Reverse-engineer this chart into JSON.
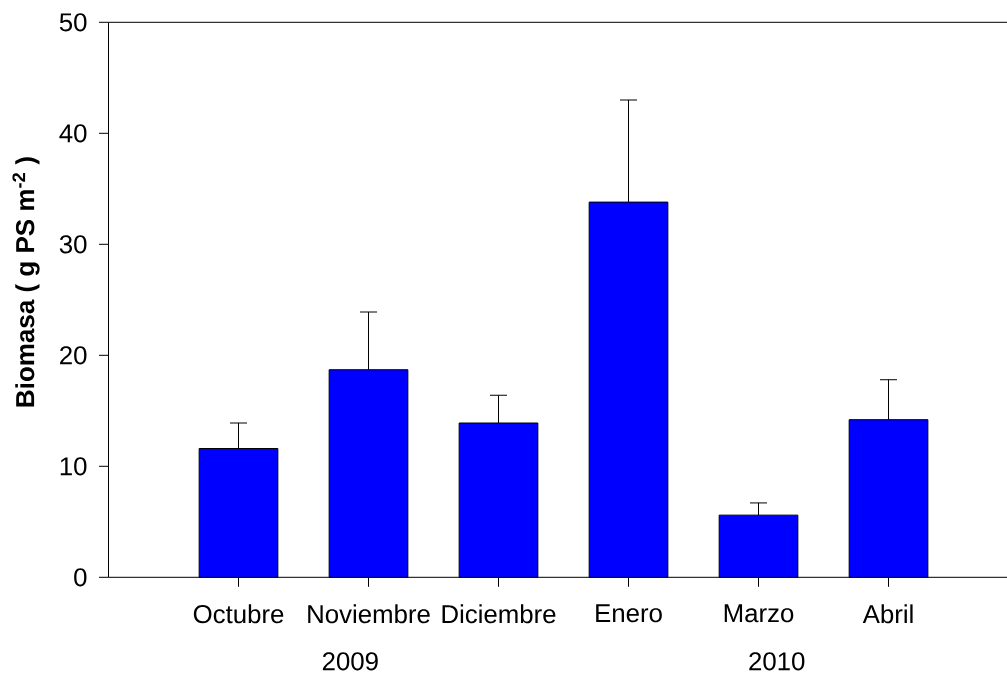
{
  "chart_data": {
    "type": "bar",
    "ylabel": "Biomasa ( g PS m$^{-2}$ )",
    "categories": [
      "Octubre",
      "Noviembre",
      "Diciembre",
      "Enero",
      "Marzo",
      "Abril"
    ],
    "values": [
      11.6,
      18.7,
      13.9,
      33.8,
      5.6,
      14.2
    ],
    "errors": [
      [
        11.6,
        13.9
      ],
      [
        18.7,
        23.9
      ],
      [
        13.9,
        16.4
      ],
      [
        33.8,
        43.0
      ],
      [
        5.6,
        6.7
      ],
      [
        14.2,
        17.8
      ]
    ],
    "color": "#0000ff",
    "ylim": [
      0,
      50
    ],
    "yticks": [
      0,
      10,
      20,
      30,
      40,
      50
    ],
    "annotations": [
      "2009",
      "2010"
    ]
  }
}
